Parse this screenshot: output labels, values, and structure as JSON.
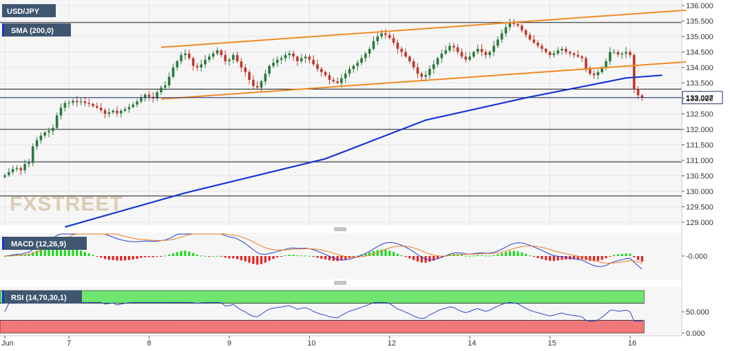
{
  "instrument": "USD/JPY",
  "watermark": "FXSTREET",
  "colors": {
    "bull": "#2a7a3b",
    "bear": "#c0392b",
    "sma": "#1636d6",
    "channel": "#f08a24",
    "macd_line": "#1f3fd6",
    "signal_line": "#f07a1e",
    "hist_pos": "#22d822",
    "hist_neg": "#e82020",
    "rsi_line": "#2b45d0",
    "rsi_overbought": "#6fe66f",
    "rsi_oversold": "#f07878",
    "current_price_line": "#1b2c6b"
  },
  "chart_data": [
    {
      "type": "candlestick",
      "pane": "price",
      "indicator_label": "SMA (200,0)",
      "current_price": "133.027",
      "y_ticks": [
        "136.000",
        "135.500",
        "135.000",
        "134.500",
        "134.000",
        "133.500",
        "133.000",
        "132.500",
        "132.000",
        "131.500",
        "131.000",
        "130.500",
        "130.000",
        "129.500",
        "129.000"
      ],
      "ylim": [
        128.9,
        136.1
      ],
      "x_ticks": [
        {
          "label": "Jun",
          "bar": 0
        },
        {
          "label": "7",
          "bar": 16
        },
        {
          "label": "8",
          "bar": 36
        },
        {
          "label": "9",
          "bar": 56
        },
        {
          "label": "10",
          "bar": 76
        },
        {
          "label": "12",
          "bar": 96
        },
        {
          "label": "14",
          "bar": 116
        },
        {
          "label": "15",
          "bar": 136
        },
        {
          "label": "16",
          "bar": 156
        }
      ],
      "horizontal_levels": [
        135.45,
        133.3,
        132.0,
        130.95,
        129.85
      ],
      "channel_upper": [
        [
          39,
          134.65
        ],
        [
          170,
          135.85
        ]
      ],
      "channel_lower": [
        [
          39,
          132.98
        ],
        [
          170,
          134.18
        ]
      ],
      "sma200": [
        [
          15,
          128.85
        ],
        [
          45,
          129.95
        ],
        [
          80,
          131.05
        ],
        [
          105,
          132.3
        ],
        [
          130,
          133.02
        ],
        [
          155,
          133.66
        ],
        [
          164,
          133.75
        ]
      ],
      "closes": [
        130.52,
        130.62,
        130.72,
        130.75,
        130.68,
        130.88,
        130.92,
        131.45,
        131.65,
        131.8,
        131.9,
        131.95,
        132.05,
        132.45,
        132.7,
        132.85,
        132.86,
        132.92,
        132.88,
        132.9,
        132.85,
        132.82,
        132.75,
        132.7,
        132.62,
        132.5,
        132.55,
        132.6,
        132.52,
        132.6,
        132.65,
        132.72,
        132.8,
        132.9,
        133.02,
        133.12,
        133.05,
        133.0,
        133.2,
        133.35,
        133.42,
        133.7,
        134.0,
        134.2,
        134.4,
        134.45,
        134.3,
        134.05,
        134.0,
        134.1,
        134.25,
        134.35,
        134.45,
        134.55,
        134.4,
        134.2,
        134.25,
        134.4,
        134.2,
        134.0,
        133.85,
        133.6,
        133.4,
        133.35,
        133.55,
        133.8,
        134.05,
        134.15,
        134.25,
        134.3,
        134.4,
        134.45,
        134.35,
        134.2,
        134.3,
        134.35,
        134.25,
        134.1,
        133.95,
        133.85,
        133.75,
        133.6,
        133.55,
        133.5,
        133.65,
        133.8,
        133.95,
        134.05,
        134.15,
        134.3,
        134.45,
        134.6,
        134.85,
        135.0,
        135.1,
        135.05,
        134.95,
        134.8,
        134.6,
        134.5,
        134.35,
        134.2,
        134.0,
        133.8,
        133.7,
        133.75,
        133.95,
        134.1,
        134.3,
        134.45,
        134.55,
        134.7,
        134.65,
        134.5,
        134.35,
        134.25,
        134.35,
        134.5,
        134.6,
        134.5,
        134.4,
        134.5,
        134.7,
        134.9,
        135.1,
        135.3,
        135.45,
        135.4,
        135.35,
        135.2,
        135.05,
        134.9,
        134.8,
        134.7,
        134.6,
        134.5,
        134.4,
        134.45,
        134.55,
        134.6,
        134.5,
        134.45,
        134.4,
        134.35,
        134.3,
        133.95,
        133.8,
        133.75,
        133.85,
        134.0,
        134.2,
        134.5,
        134.5,
        134.42,
        134.45,
        134.5,
        134.4,
        133.3,
        133.1,
        133.027
      ],
      "series": [
        {
          "name": "SMA (200,0)"
        }
      ]
    },
    {
      "type": "macd",
      "pane": "macd",
      "indicator_label": "MACD (12,26,9)",
      "y_ticks": [
        "-0.000"
      ],
      "ylim": [
        -0.42,
        0.42
      ]
    },
    {
      "type": "line",
      "pane": "rsi",
      "indicator_label": "RSI (14,70,30,1)",
      "y_ticks": [
        "50.000",
        "0.000"
      ],
      "ylim": [
        0,
        100
      ],
      "overbought": 70,
      "oversold": 30
    }
  ]
}
